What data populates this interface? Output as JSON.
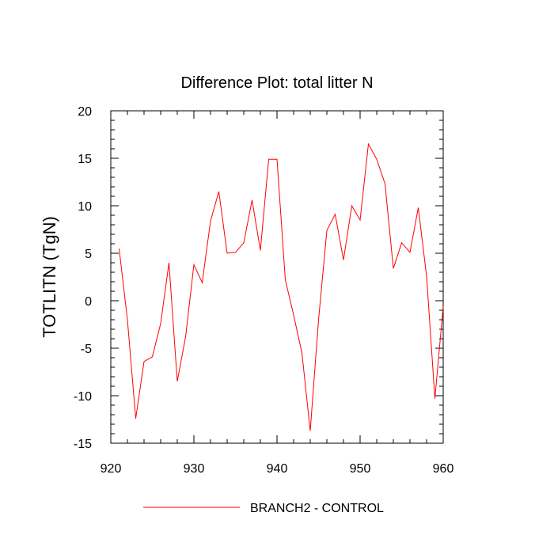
{
  "chart_data": {
    "type": "line",
    "title": "Difference Plot: total litter N",
    "xlabel": "",
    "ylabel": "TOTLITN  (TgN)",
    "xlim": [
      920,
      960
    ],
    "ylim": [
      -15,
      20
    ],
    "x_ticks": [
      920,
      930,
      940,
      950,
      960
    ],
    "y_ticks": [
      -15,
      -10,
      -5,
      0,
      5,
      10,
      15,
      20
    ],
    "grid": false,
    "legend_position": "bottom",
    "series": [
      {
        "name": "BRANCH2 - CONTROL",
        "color": "#ff0000",
        "x": [
          921,
          922,
          923,
          924,
          925,
          926,
          927,
          928,
          929,
          930,
          931,
          932,
          933,
          934,
          935,
          936,
          937,
          938,
          939,
          940,
          941,
          942,
          943,
          944,
          945,
          946,
          947,
          948,
          949,
          950,
          951,
          952,
          953,
          954,
          955,
          956,
          957,
          958,
          959,
          960
        ],
        "y": [
          5.5,
          -2.0,
          -12.4,
          -6.4,
          -5.9,
          -2.4,
          4.0,
          -8.5,
          -3.8,
          3.8,
          1.9,
          8.4,
          11.5,
          5.0,
          5.1,
          6.1,
          10.6,
          5.3,
          14.9,
          14.9,
          2.2,
          -1.5,
          -5.5,
          -13.7,
          -2.0,
          7.4,
          9.1,
          4.3,
          10.0,
          8.5,
          16.5,
          14.9,
          12.3,
          3.4,
          6.1,
          5.1,
          9.8,
          2.6,
          -10.3,
          -0.6
        ]
      }
    ]
  }
}
